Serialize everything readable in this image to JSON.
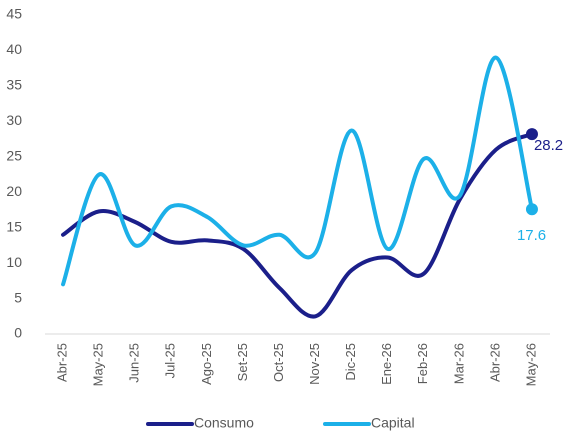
{
  "chart_data": {
    "type": "line",
    "categories": [
      "Abr-25",
      "May-25",
      "Jun-25",
      "Jul-25",
      "Ago-25",
      "Set-25",
      "Oct-25",
      "Nov-25",
      "Dic-25",
      "Ene-26",
      "Feb-26",
      "Mar-26",
      "Abr-26",
      "May-26"
    ],
    "series": [
      {
        "name": "Consumo",
        "color": "#1b1f8a",
        "values": [
          14,
          17.3,
          15.8,
          13,
          13.2,
          12,
          6.5,
          2.5,
          9,
          10.8,
          8.5,
          19,
          26,
          28.2
        ]
      },
      {
        "name": "Capital",
        "color": "#1cb0e8",
        "values": [
          7,
          22.5,
          12.5,
          18,
          16.5,
          12.5,
          14,
          11.5,
          28.7,
          12,
          24.7,
          19.5,
          39,
          17.6
        ]
      }
    ],
    "ylim": [
      0,
      45
    ],
    "yticks": [
      0,
      5,
      10,
      15,
      20,
      25,
      30,
      35,
      40,
      45
    ],
    "grid": false,
    "legend": "bottom"
  }
}
